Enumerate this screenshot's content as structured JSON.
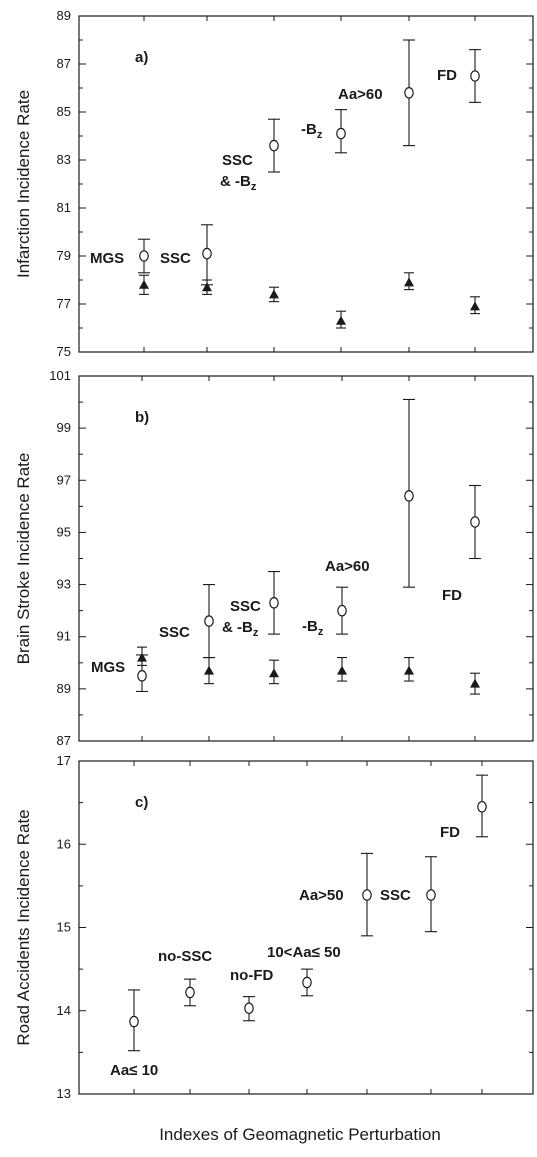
{
  "figure": {
    "xlabel": "Indexes of Geomagnetic Perturbation"
  },
  "chart_data": [
    {
      "type": "scatter",
      "panel_label": "a)",
      "ylabel": "Infarction Incidence Rate",
      "ylim": [
        75,
        89
      ],
      "yticks": [
        75,
        77,
        79,
        81,
        83,
        85,
        87,
        89
      ],
      "grid": false,
      "series": [
        {
          "marker": "open-circle",
          "points": [
            {
              "label": "MGS",
              "y": 79.0,
              "err": [
                78.3,
                79.7
              ]
            },
            {
              "label": "SSC",
              "y": 79.1,
              "err": [
                77.8,
                80.3
              ]
            },
            {
              "label": "SSC & -B",
              "label_sub": "z",
              "y": 83.6,
              "err": [
                82.5,
                84.7
              ]
            },
            {
              "label": "-B",
              "label_sub": "z",
              "y": 84.1,
              "err": [
                83.3,
                85.1
              ]
            },
            {
              "label": "Aa>60",
              "y": 85.8,
              "err": [
                83.6,
                88.0
              ]
            },
            {
              "label": "FD",
              "y": 86.5,
              "err": [
                85.4,
                87.6
              ]
            }
          ]
        },
        {
          "marker": "filled-triangle",
          "points": [
            {
              "y": 77.8,
              "err": [
                77.4,
                78.2
              ]
            },
            {
              "y": 77.7,
              "err": [
                77.4,
                78.0
              ]
            },
            {
              "y": 77.4,
              "err": [
                77.1,
                77.7
              ]
            },
            {
              "y": 76.3,
              "err": [
                76.0,
                76.7
              ]
            },
            {
              "y": 77.9,
              "err": [
                77.6,
                78.3
              ]
            },
            {
              "y": 76.9,
              "err": [
                76.6,
                77.3
              ]
            }
          ]
        }
      ]
    },
    {
      "type": "scatter",
      "panel_label": "b)",
      "ylabel": "Brain Stroke Incidence Rate",
      "ylim": [
        87,
        101
      ],
      "yticks": [
        87,
        89,
        91,
        93,
        95,
        97,
        99,
        101
      ],
      "grid": false,
      "series": [
        {
          "marker": "open-circle",
          "points": [
            {
              "label": "MGS",
              "y": 89.5,
              "err": [
                88.9,
                90.3
              ]
            },
            {
              "label": "SSC",
              "y": 91.6,
              "err": [
                90.2,
                93.0
              ]
            },
            {
              "label": "SSC & -B",
              "label_sub": "z",
              "y": 92.3,
              "err": [
                91.1,
                93.5
              ]
            },
            {
              "label": "-B",
              "label_sub": "z",
              "y": 92.0,
              "err": [
                91.1,
                92.9
              ]
            },
            {
              "label": "Aa>60",
              "y": 96.4,
              "err": [
                92.9,
                100.1
              ]
            },
            {
              "label": "FD",
              "y": 95.4,
              "err": [
                94.0,
                96.8
              ]
            }
          ]
        },
        {
          "marker": "filled-triangle",
          "points": [
            {
              "y": 90.2,
              "err": [
                89.9,
                90.6
              ]
            },
            {
              "y": 89.7,
              "err": [
                89.2,
                90.2
              ]
            },
            {
              "y": 89.6,
              "err": [
                89.2,
                90.1
              ]
            },
            {
              "y": 89.7,
              "err": [
                89.3,
                90.2
              ]
            },
            {
              "y": 89.7,
              "err": [
                89.3,
                90.2
              ]
            },
            {
              "y": 89.2,
              "err": [
                88.8,
                89.6
              ]
            }
          ]
        }
      ]
    },
    {
      "type": "scatter",
      "panel_label": "c)",
      "ylabel": "Road Accidents Incidence Rate",
      "ylim": [
        13,
        17
      ],
      "yticks": [
        13,
        14,
        15,
        16,
        17
      ],
      "grid": false,
      "series": [
        {
          "marker": "open-circle",
          "points": [
            {
              "label": "Aa≤ 10",
              "y": 13.87,
              "err": [
                13.52,
                14.25
              ]
            },
            {
              "label": "no-SSC",
              "y": 14.22,
              "err": [
                14.06,
                14.38
              ]
            },
            {
              "label": "no-FD",
              "y": 14.03,
              "err": [
                13.88,
                14.17
              ]
            },
            {
              "label": "10<Aa≤ 50",
              "y": 14.34,
              "err": [
                14.18,
                14.5
              ]
            },
            {
              "label": "Aa>50",
              "y": 15.39,
              "err": [
                14.9,
                15.89
              ]
            },
            {
              "label": "SSC",
              "y": 15.39,
              "err": [
                14.95,
                15.85
              ]
            },
            {
              "label": "FD",
              "y": 16.45,
              "err": [
                16.09,
                16.83
              ]
            }
          ]
        }
      ]
    }
  ]
}
